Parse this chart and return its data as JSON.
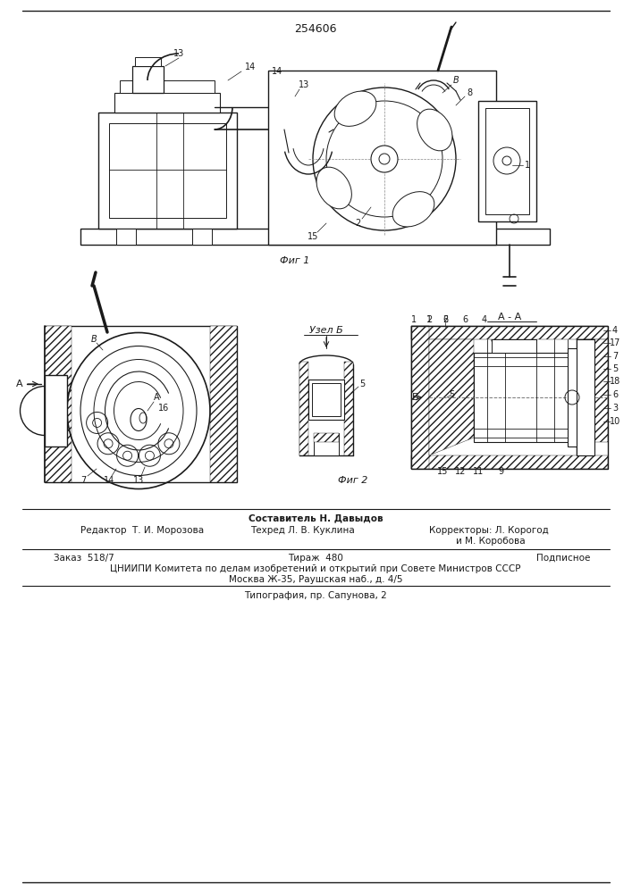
{
  "patent_number": "254606",
  "background_color": "#ffffff",
  "line_color": "#1a1a1a",
  "fig1_caption": "Фиг 1",
  "fig2_caption": "Фиг 2",
  "uzel_b_label": "Узел Б",
  "section_aa_label": "А - А",
  "sestavitel_line": "Составитель Н. Давыдов",
  "redaktor_line": "Редактор  Т. И. Морозова",
  "tehred_line": "Техред Л. В. Куклина",
  "korrektory_line": "Корректоры: Л. Корогод",
  "korrektory_line2": "и М. Коробова",
  "zakaz_line": "Заказ  518/7",
  "tirazh_line": "Тираж  480",
  "podpisnoe_line": "Подписное",
  "tsniipni_line": "ЦНИИПИ Комитета по делам изобретений и открытий при Совете Министров СССР",
  "moskva_line": "Москва Ж-35, Раушская наб., д. 4/5",
  "tipografiya_line": "Типография, пр. Сапунова, 2"
}
